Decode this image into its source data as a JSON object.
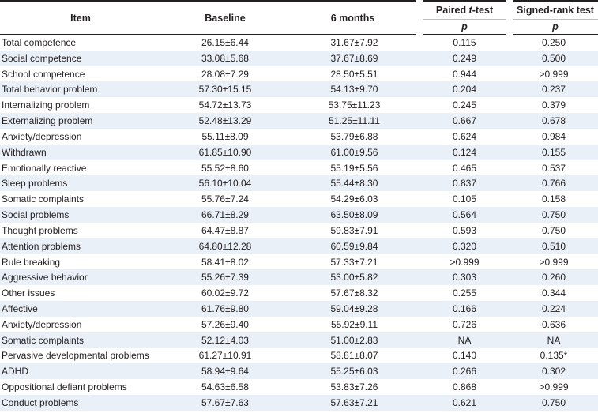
{
  "header": {
    "item": "Item",
    "baseline": "Baseline",
    "six_months": "6 months",
    "paired_prefix": "Paired ",
    "paired_t": "t",
    "paired_suffix": "-test",
    "signed_rank": "Signed-rank test",
    "p1": "p",
    "p2": "p"
  },
  "rows": [
    {
      "item": "Total competence",
      "baseline": "26.15±6.44",
      "six": "31.67±7.92",
      "paired": "0.115",
      "signed": "0.250"
    },
    {
      "item": "Social competence",
      "baseline": "33.08±5.68",
      "six": "37.67±8.69",
      "paired": "0.249",
      "signed": "0.500"
    },
    {
      "item": "School competence",
      "baseline": "28.08±7.29",
      "six": "28.50±5.51",
      "paired": "0.944",
      "signed": ">0.999"
    },
    {
      "item": "Total behavior problem",
      "baseline": "57.30±15.15",
      "six": "54.13±9.70",
      "paired": "0.204",
      "signed": "0.237"
    },
    {
      "item": "Internalizing problem",
      "baseline": "54.72±13.73",
      "six": "53.75±11.23",
      "paired": "0.245",
      "signed": "0.379"
    },
    {
      "item": "Externalizing problem",
      "baseline": "52.48±13.29",
      "six": "51.25±11.11",
      "paired": "0.667",
      "signed": "0.678"
    },
    {
      "item": "Anxiety/depression",
      "baseline": "55.11±8.09",
      "six": "53.79±6.88",
      "paired": "0.624",
      "signed": "0.984"
    },
    {
      "item": "Withdrawn",
      "baseline": "61.85±10.90",
      "six": "61.00±9.56",
      "paired": "0.124",
      "signed": "0.155"
    },
    {
      "item": "Emotionally reactive",
      "baseline": "55.52±8.60",
      "six": "55.19±5.56",
      "paired": "0.465",
      "signed": "0.537"
    },
    {
      "item": "Sleep problems",
      "baseline": "56.10±10.04",
      "six": "55.44±8.30",
      "paired": "0.837",
      "signed": "0.766"
    },
    {
      "item": "Somatic complaints",
      "baseline": "55.76±7.24",
      "six": "54.29±6.03",
      "paired": "0.105",
      "signed": "0.158"
    },
    {
      "item": "Social problems",
      "baseline": "66.71±8.29",
      "six": "63.50±8.09",
      "paired": "0.564",
      "signed": "0.750"
    },
    {
      "item": "Thought problems",
      "baseline": "64.47±8.87",
      "six": "59.83±7.91",
      "paired": "0.593",
      "signed": "0.750"
    },
    {
      "item": "Attention problems",
      "baseline": "64.80±12.28",
      "six": "60.59±9.84",
      "paired": "0.320",
      "signed": "0.510"
    },
    {
      "item": "Rule breaking",
      "baseline": "58.41±8.02",
      "six": "57.33±7.21",
      "paired": ">0.999",
      "signed": ">0.999"
    },
    {
      "item": "Aggressive behavior",
      "baseline": "55.26±7.39",
      "six": "53.00±5.82",
      "paired": "0.303",
      "signed": "0.260"
    },
    {
      "item": "Other issues",
      "baseline": "60.02±9.72",
      "six": "57.67±8.32",
      "paired": "0.255",
      "signed": "0.344"
    },
    {
      "item": "Affective",
      "baseline": "61.76±9.80",
      "six": "59.04±9.28",
      "paired": "0.166",
      "signed": "0.224"
    },
    {
      "item": "Anxiety/depression",
      "baseline": "57.26±9.40",
      "six": "55.92±9.11",
      "paired": "0.726",
      "signed": "0.636"
    },
    {
      "item": "Somatic complaints",
      "baseline": "52.12±4.03",
      "six": "51.00±2.83",
      "paired": "NA",
      "signed": "NA"
    },
    {
      "item": "Pervasive developmental problems",
      "baseline": "61.27±10.91",
      "six": "58.81±8.07",
      "paired": "0.140",
      "signed": "0.135*"
    },
    {
      "item": "ADHD",
      "baseline": "58.94±9.64",
      "six": "55.25±6.03",
      "paired": "0.266",
      "signed": "0.302"
    },
    {
      "item": "Oppositional defiant problems",
      "baseline": "54.63±6.58",
      "six": "53.83±7.26",
      "paired": "0.868",
      "signed": ">0.999"
    },
    {
      "item": "Conduct problems",
      "baseline": "57.67±7.63",
      "six": "57.63±7.21",
      "paired": "0.621",
      "signed": "0.750"
    }
  ]
}
